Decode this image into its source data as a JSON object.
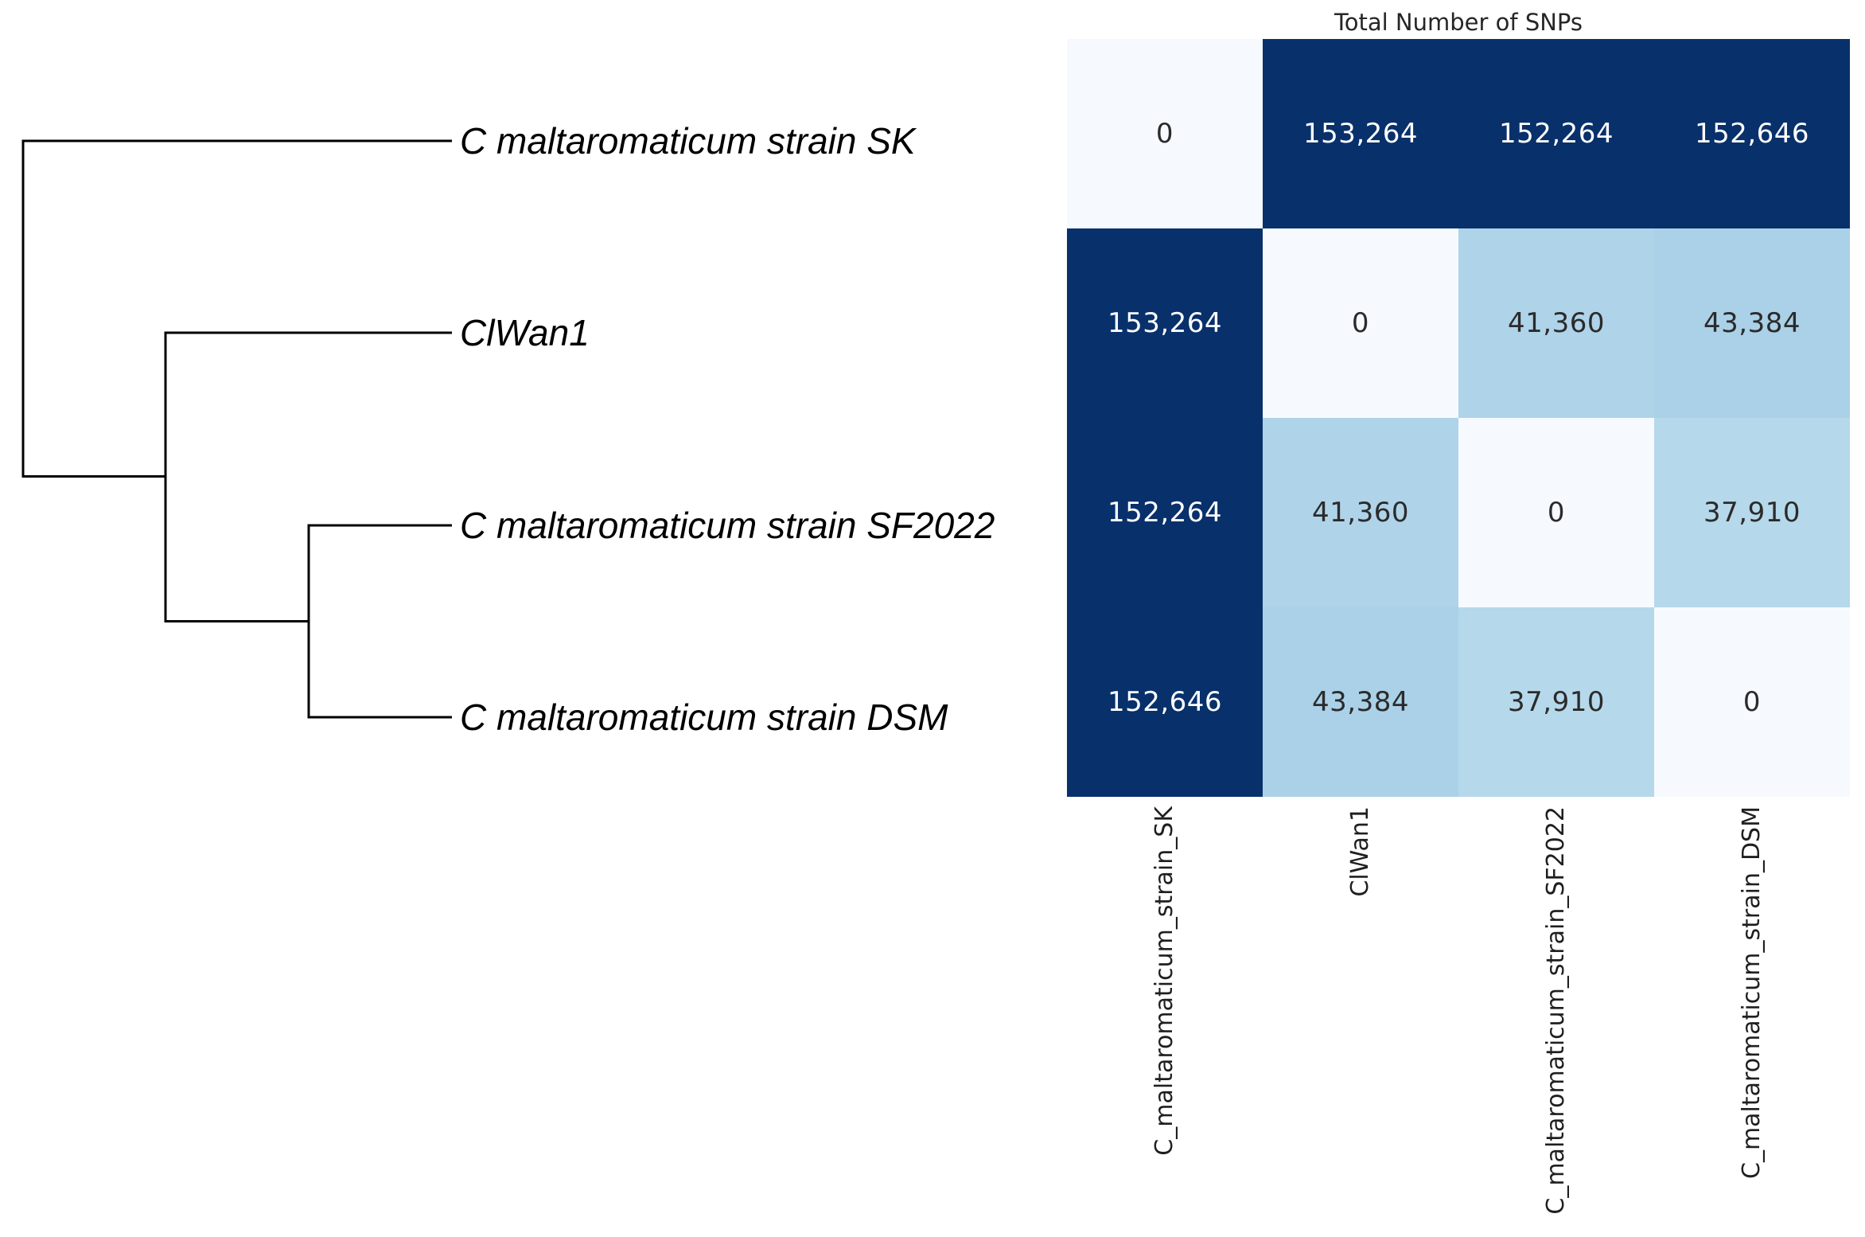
{
  "figure": {
    "title": "Total Number of SNPs"
  },
  "tree": {
    "leaves": [
      {
        "label": "C maltaromaticum strain SK"
      },
      {
        "label": "ClWan1"
      },
      {
        "label": "C maltaromaticum strain SF2022"
      },
      {
        "label": "C maltaromaticum strain DSM"
      }
    ]
  },
  "chart_data": {
    "type": "heatmap",
    "title": "Total Number of SNPs",
    "columns": [
      "C_maltaromaticum_strain_SK",
      "ClWan1",
      "C_maltaromaticum_strain_SF2022",
      "C_maltaromaticum_strain_DSM"
    ],
    "rows": [
      "C maltaromaticum strain SK",
      "ClWan1",
      "C maltaromaticum strain SF2022",
      "C maltaromaticum strain DSM"
    ],
    "matrix": [
      [
        0,
        153264,
        152264,
        152646
      ],
      [
        153264,
        0,
        41360,
        43384
      ],
      [
        152264,
        41360,
        0,
        37910
      ],
      [
        152646,
        43384,
        37910,
        0
      ]
    ],
    "matrix_display": [
      [
        "0",
        "153,264",
        "152,264",
        "152,646"
      ],
      [
        "153,264",
        "0",
        "41,360",
        "43,384"
      ],
      [
        "152,264",
        "41,360",
        "0",
        "37,910"
      ],
      [
        "152,646",
        "43,384",
        "37,910",
        "0"
      ]
    ],
    "value_range": [
      0,
      153264
    ],
    "colormap": "Blues",
    "legend_position": "none",
    "tree_structure_newick": "(C_maltaromaticum_strain_SK,(ClWan1,(C_maltaromaticum_strain_SF2022,C_maltaromaticum_strain_DSM)));"
  },
  "colors": {
    "heatmap_max": "#08306b",
    "heatmap_min": "#f6fafe",
    "cell_fill_by_value": {
      "0": "#f6fafe",
      "37910": "#b6d8eb",
      "41360": "#afd3e9",
      "43384": "#aad1e7",
      "152264": "#08306b",
      "152646": "#08306b",
      "153264": "#08306b"
    },
    "text_on_dark": "#ffffff",
    "text_on_light": "#2b2b2b",
    "tree_line": "#000000"
  }
}
